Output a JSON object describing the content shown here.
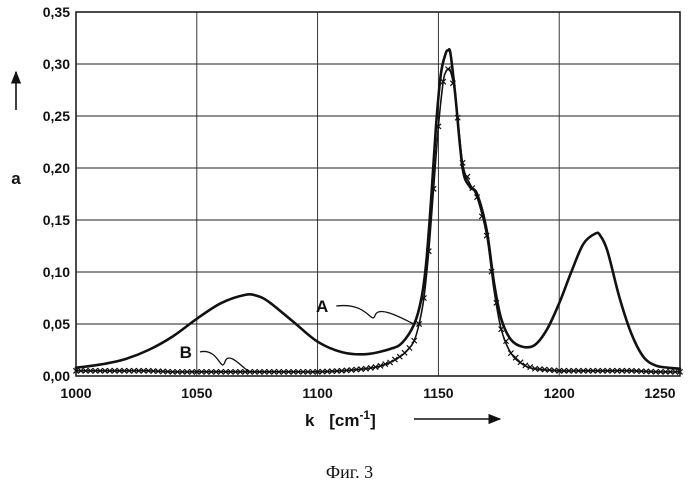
{
  "caption": "Фиг. 3",
  "chart_data": {
    "type": "line",
    "xlabel": "k",
    "xlabel_unit_base": "[cm",
    "xlabel_unit_sup": "-1",
    "xlabel_unit_close": "]",
    "ylabel": "a",
    "xlim": [
      1000,
      1250
    ],
    "ylim": [
      0,
      0.35
    ],
    "x_ticks": [
      1000,
      1050,
      1100,
      1150,
      1200,
      1250
    ],
    "y_ticks": [
      0,
      0.05,
      0.1,
      0.15,
      0.2,
      0.25,
      0.3,
      0.35
    ],
    "x_tick_labels": [
      "1000",
      "1050",
      "1100",
      "1150",
      "1200",
      "1250"
    ],
    "y_tick_labels": [
      "0,00",
      "0,05",
      "0,10",
      "0,15",
      "0,20",
      "0,25",
      "0,30",
      "0,35"
    ],
    "grid": true,
    "series": [
      {
        "name": "A",
        "marker": "none",
        "x": [
          1000,
          1010,
          1020,
          1030,
          1040,
          1050,
          1060,
          1070,
          1075,
          1080,
          1090,
          1100,
          1110,
          1120,
          1130,
          1135,
          1140,
          1143,
          1145,
          1147,
          1149,
          1151,
          1153,
          1154,
          1155,
          1157,
          1160,
          1163,
          1166,
          1170,
          1173,
          1176,
          1180,
          1185,
          1190,
          1195,
          1200,
          1205,
          1210,
          1215,
          1217,
          1220,
          1225,
          1230,
          1235,
          1240,
          1245,
          1250
        ],
        "y": [
          0.008,
          0.011,
          0.016,
          0.025,
          0.038,
          0.055,
          0.07,
          0.078,
          0.077,
          0.071,
          0.052,
          0.033,
          0.023,
          0.021,
          0.026,
          0.032,
          0.05,
          0.075,
          0.11,
          0.17,
          0.24,
          0.29,
          0.31,
          0.313,
          0.31,
          0.27,
          0.2,
          0.182,
          0.175,
          0.14,
          0.09,
          0.055,
          0.035,
          0.028,
          0.03,
          0.045,
          0.07,
          0.1,
          0.127,
          0.137,
          0.135,
          0.12,
          0.075,
          0.04,
          0.018,
          0.01,
          0.008,
          0.007
        ]
      },
      {
        "name": "B",
        "marker": "x",
        "x": [
          1000,
          1010,
          1020,
          1030,
          1040,
          1050,
          1060,
          1070,
          1080,
          1090,
          1100,
          1110,
          1120,
          1125,
          1130,
          1135,
          1138,
          1140,
          1142,
          1144,
          1146,
          1148,
          1150,
          1152,
          1153,
          1154,
          1155,
          1157,
          1160,
          1163,
          1166,
          1170,
          1173,
          1176,
          1180,
          1185,
          1190,
          1200,
          1210,
          1220,
          1230,
          1240,
          1250
        ],
        "y": [
          0.005,
          0.005,
          0.005,
          0.005,
          0.004,
          0.004,
          0.004,
          0.004,
          0.004,
          0.004,
          0.004,
          0.005,
          0.007,
          0.009,
          0.013,
          0.02,
          0.027,
          0.034,
          0.05,
          0.075,
          0.12,
          0.18,
          0.24,
          0.283,
          0.292,
          0.295,
          0.293,
          0.27,
          0.205,
          0.185,
          0.172,
          0.135,
          0.083,
          0.045,
          0.022,
          0.011,
          0.007,
          0.005,
          0.005,
          0.005,
          0.005,
          0.004,
          0.004
        ]
      }
    ],
    "annotations": [
      {
        "label": "A",
        "series": "A",
        "at_x": 1140
      },
      {
        "label": "B",
        "series": "B",
        "at_x": 1072
      }
    ]
  }
}
